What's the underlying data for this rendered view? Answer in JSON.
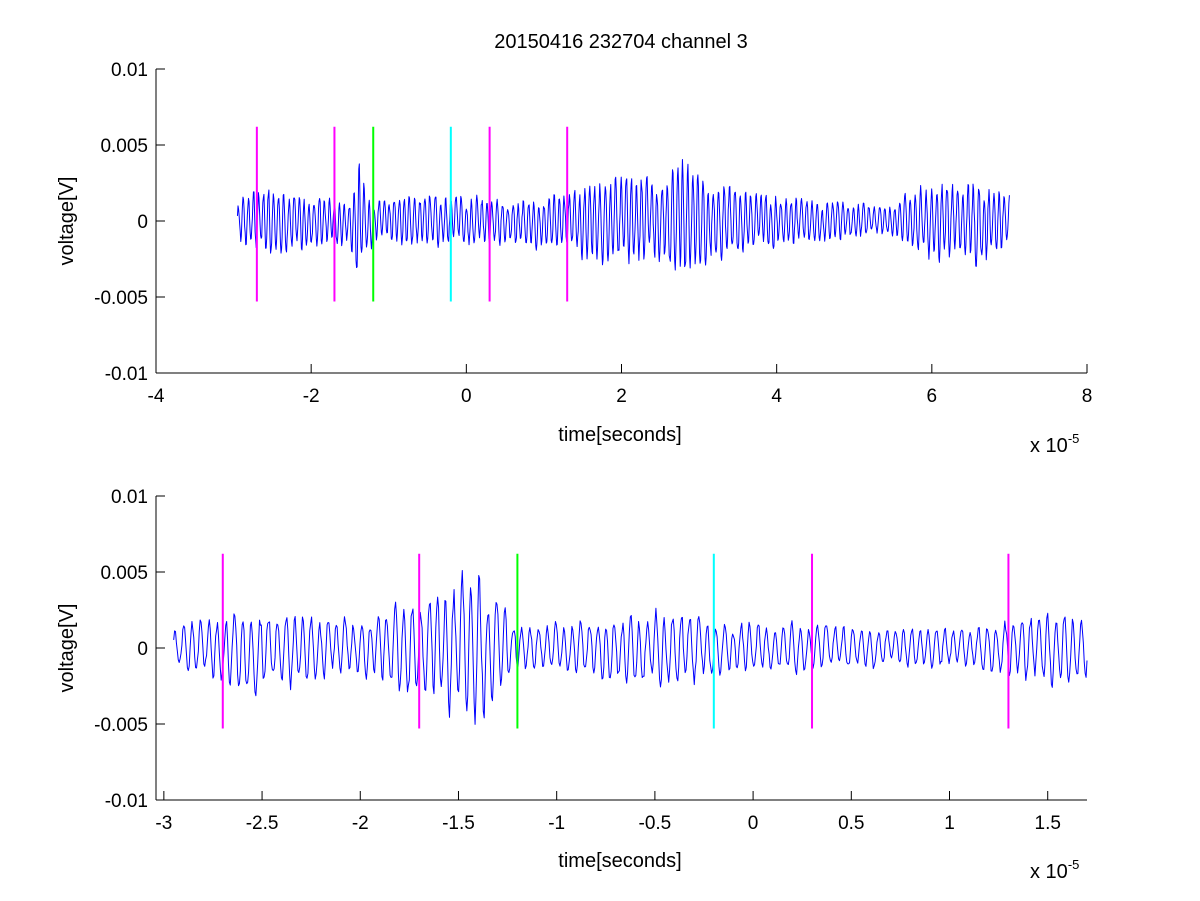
{
  "title": "20150416 232704 channel 3",
  "colors": {
    "signal": "#0000ff",
    "magenta": "#ff00ff",
    "green": "#00ff00",
    "cyan": "#00ffff",
    "axes": "#000000",
    "background": "#ffffff"
  },
  "chart_data": [
    {
      "type": "line",
      "title": "20150416 232704 channel 3",
      "xlabel": "time[seconds]",
      "ylabel": "voltage[V]",
      "x_multiplier_label": "x 10",
      "x_multiplier_exponent": "-5",
      "xlim": [
        -4,
        8
      ],
      "ylim": [
        -0.01,
        0.01
      ],
      "x_unit_scale": 1e-05,
      "xticks": [
        -4,
        -2,
        0,
        2,
        4,
        6,
        8
      ],
      "xtick_labels": [
        "-4",
        "-2",
        "0",
        "2",
        "4",
        "6",
        "8"
      ],
      "yticks": [
        -0.01,
        -0.005,
        0,
        0.005,
        0.01
      ],
      "ytick_labels": [
        "-0.01",
        "-0.005",
        "0",
        "0.005",
        "0.01"
      ],
      "grid": false,
      "series": [
        {
          "x_range": [
            -2.95,
            7.0
          ],
          "approx_amplitude_envelope": [
            [
              -2.95,
              0.0015
            ],
            [
              -2.6,
              0.0025
            ],
            [
              -1.5,
              0.0015
            ],
            [
              -1.4,
              0.0045
            ],
            [
              -1.2,
              0.0015
            ],
            [
              -0.5,
              0.002
            ],
            [
              0.5,
              0.0015
            ],
            [
              1.3,
              0.002
            ],
            [
              1.5,
              0.003
            ],
            [
              2.4,
              0.003
            ],
            [
              2.8,
              0.004
            ],
            [
              3.2,
              0.003
            ],
            [
              3.8,
              0.002
            ],
            [
              4.5,
              0.0015
            ],
            [
              5.5,
              0.001
            ],
            [
              5.8,
              0.0025
            ],
            [
              6.2,
              0.003
            ],
            [
              6.6,
              0.003
            ],
            [
              7.0,
              0.002
            ]
          ]
        }
      ],
      "vertical_markers": [
        {
          "x": -2.7,
          "color": "magenta",
          "y_range": [
            -0.0053,
            0.0062
          ]
        },
        {
          "x": -1.7,
          "color": "magenta",
          "y_range": [
            -0.0053,
            0.0062
          ]
        },
        {
          "x": -1.2,
          "color": "green",
          "y_range": [
            -0.0053,
            0.0062
          ]
        },
        {
          "x": -0.2,
          "color": "cyan",
          "y_range": [
            -0.0053,
            0.0062
          ]
        },
        {
          "x": 0.3,
          "color": "magenta",
          "y_range": [
            -0.0053,
            0.0062
          ]
        },
        {
          "x": 1.3,
          "color": "magenta",
          "y_range": [
            -0.0053,
            0.0062
          ]
        }
      ]
    },
    {
      "type": "line",
      "xlabel": "time[seconds]",
      "ylabel": "voltage[V]",
      "x_multiplier_label": "x 10",
      "x_multiplier_exponent": "-5",
      "xlim": [
        -3.04,
        1.7
      ],
      "ylim": [
        -0.01,
        0.01
      ],
      "xticks": [
        -3,
        -2.5,
        -2,
        -1.5,
        -1,
        -0.5,
        0,
        0.5,
        1,
        1.5
      ],
      "xtick_labels": [
        "-3",
        "-2.5",
        "-2",
        "-1.5",
        "-1",
        "-0.5",
        "0",
        "0.5",
        "1",
        "1.5"
      ],
      "yticks": [
        -0.01,
        -0.005,
        0,
        0.005,
        0.01
      ],
      "ytick_labels": [
        "-0.01",
        "-0.005",
        "0",
        "0.005",
        "0.01"
      ],
      "grid": false,
      "series": [
        {
          "x_range": [
            -2.95,
            1.7
          ],
          "approx_amplitude_envelope": [
            [
              -2.95,
              0.0015
            ],
            [
              -2.7,
              0.0025
            ],
            [
              -2.6,
              0.003
            ],
            [
              -2.0,
              0.002
            ],
            [
              -1.38,
              0.0055
            ],
            [
              -1.2,
              0.0015
            ],
            [
              -0.35,
              0.003
            ],
            [
              -0.2,
              0.002
            ],
            [
              0.6,
              0.0015
            ],
            [
              1.1,
              0.0015
            ],
            [
              1.55,
              0.003
            ],
            [
              1.7,
              0.002
            ]
          ]
        }
      ],
      "vertical_markers": [
        {
          "x": -2.7,
          "color": "magenta",
          "y_range": [
            -0.0053,
            0.0062
          ]
        },
        {
          "x": -1.7,
          "color": "magenta",
          "y_range": [
            -0.0053,
            0.0062
          ]
        },
        {
          "x": -1.2,
          "color": "green",
          "y_range": [
            -0.0053,
            0.0062
          ]
        },
        {
          "x": -0.2,
          "color": "cyan",
          "y_range": [
            -0.0053,
            0.0062
          ]
        },
        {
          "x": 0.3,
          "color": "magenta",
          "y_range": [
            -0.0053,
            0.0062
          ]
        },
        {
          "x": 1.3,
          "color": "magenta",
          "y_range": [
            -0.0053,
            0.0062
          ]
        }
      ]
    }
  ]
}
